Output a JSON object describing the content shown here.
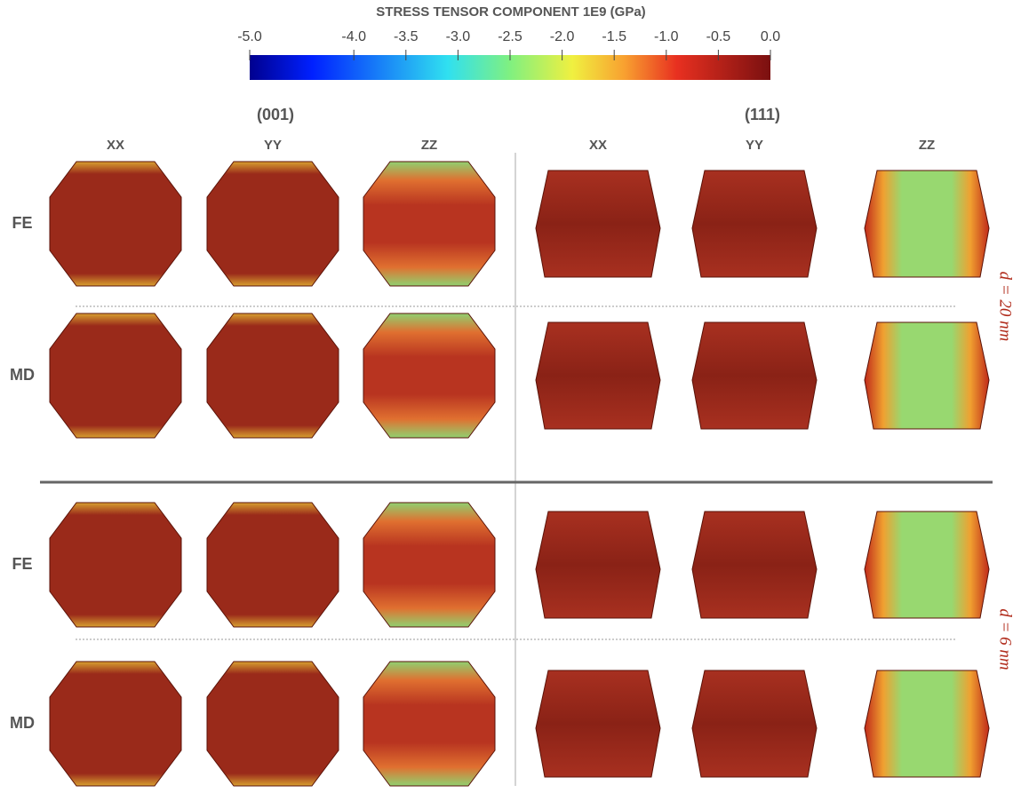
{
  "colorbar": {
    "title": "STRESS TENSOR COMPONENT 1E9 (GPa)",
    "lim": [
      -5,
      0
    ],
    "ticks": [
      {
        "value": -5,
        "label": "-5.0"
      },
      {
        "value": -4,
        "label": "-4.0"
      },
      {
        "value": -3.5,
        "label": "-3.5"
      },
      {
        "value": -3,
        "label": "-3.0"
      },
      {
        "value": -2.5,
        "label": "-2.5"
      },
      {
        "value": -2,
        "label": "-2.0"
      },
      {
        "value": -1.5,
        "label": "-1.5"
      },
      {
        "value": -1,
        "label": "-1.0"
      },
      {
        "value": -0.5,
        "label": "-0.5"
      },
      {
        "value": 0,
        "label": "0.0"
      }
    ]
  },
  "groups": [
    "(001)",
    "(111)"
  ],
  "columns": [
    "XX",
    "YY",
    "ZZ",
    "XX",
    "YY",
    "ZZ"
  ],
  "rows": [
    "FE",
    "MD",
    "FE",
    "MD"
  ],
  "sizes": [
    "d = 20 nm",
    "d = 6 nm"
  ]
}
